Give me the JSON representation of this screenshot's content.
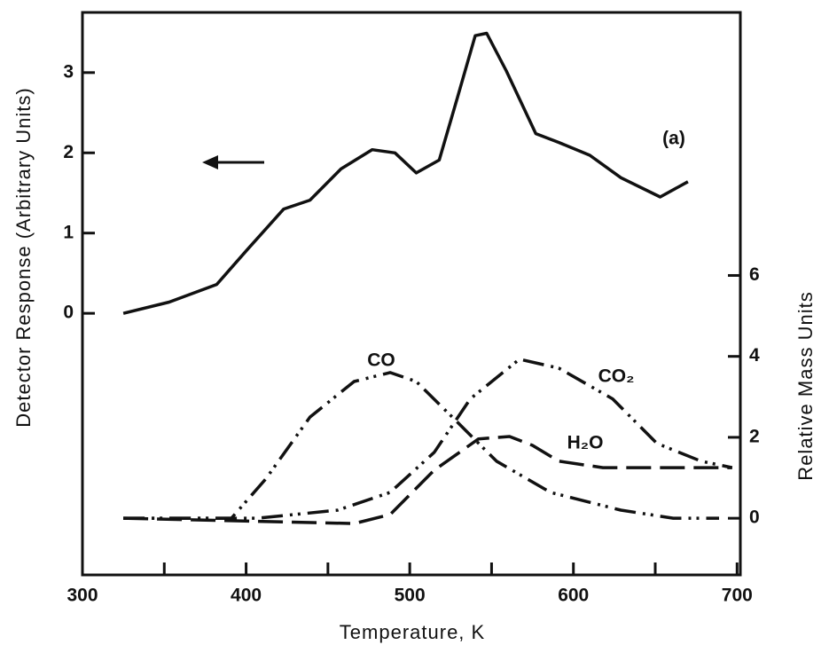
{
  "chart_data": {
    "type": "line",
    "xlabel": "Temperature, K",
    "ylabel": "Detector Response (Arbitrary Units)",
    "y2label": "Relative Mass Units",
    "annotation": "(a)",
    "xlim": [
      300,
      702
    ],
    "xticks": [
      300,
      400,
      500,
      600,
      700
    ],
    "xminor_ticks": [
      350,
      450,
      550,
      650
    ],
    "ylim": [
      -3.26,
      3.75
    ],
    "yticks": [
      0,
      1,
      2,
      3
    ],
    "y2lim": [
      -1.4,
      12.5
    ],
    "y2ticks": [
      0,
      2,
      4,
      6
    ],
    "series": [
      {
        "name": "(a)",
        "color": "#111",
        "axis": "y",
        "x": [
          325,
          353,
          382,
          401,
          423,
          439,
          458,
          477,
          491,
          504,
          518,
          529,
          540,
          547,
          559,
          577,
          591,
          610,
          629,
          653,
          670
        ],
        "values": [
          0,
          0.14,
          0.36,
          0.8,
          1.3,
          1.41,
          1.8,
          2.04,
          2.0,
          1.75,
          1.91,
          2.68,
          3.46,
          3.49,
          3.02,
          2.24,
          2.13,
          1.97,
          1.69,
          1.45,
          1.64
        ]
      },
      {
        "name": "CO",
        "color": "#111",
        "axis": "y2",
        "x": [
          325,
          391,
          412,
          439,
          466,
          488,
          504,
          526,
          553,
          586,
          629,
          661,
          689
        ],
        "values": [
          0,
          0,
          0.97,
          2.5,
          3.38,
          3.6,
          3.38,
          2.5,
          1.41,
          0.64,
          0.2,
          0,
          0
        ]
      },
      {
        "name": "CO₂",
        "color": "#111",
        "axis": "y2",
        "x": [
          325,
          407,
          456,
          488,
          515,
          537,
          567,
          591,
          624,
          651,
          678,
          697
        ],
        "values": [
          0,
          0,
          0.2,
          0.64,
          1.63,
          2.95,
          3.93,
          3.71,
          2.95,
          1.85,
          1.41,
          1.25
        ]
      },
      {
        "name": "H₂O",
        "color": "#111",
        "axis": "y2",
        "x": [
          325,
          466,
          488,
          515,
          542,
          561,
          575,
          591,
          618,
          697
        ],
        "values": [
          0,
          -0.13,
          0.09,
          1.19,
          1.96,
          2.02,
          1.8,
          1.41,
          1.25,
          1.25
        ]
      }
    ]
  }
}
